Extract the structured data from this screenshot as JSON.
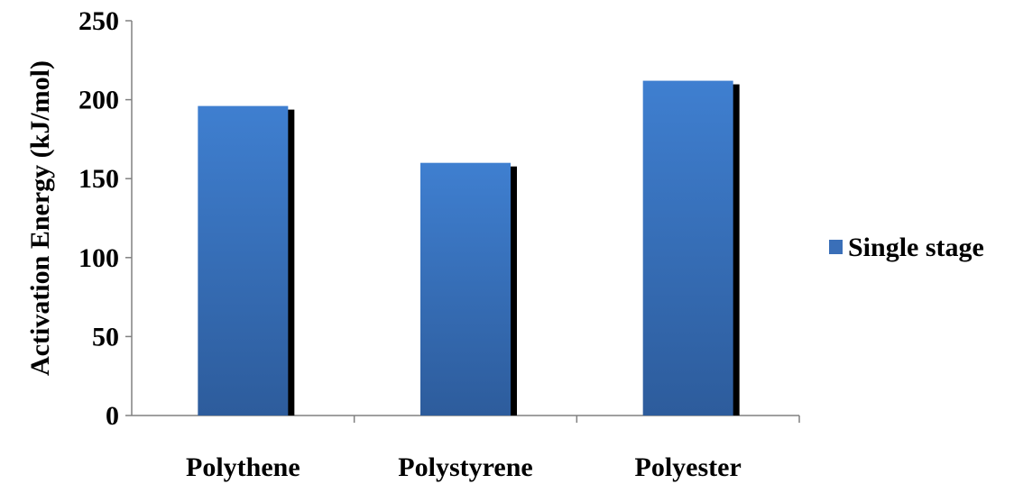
{
  "chart_data": {
    "type": "bar",
    "categories": [
      "Polythene",
      "Polystyrene",
      "Polyester"
    ],
    "series": [
      {
        "name": "Single stage",
        "values": [
          196,
          160,
          212
        ]
      }
    ],
    "title": "",
    "xlabel": "",
    "ylabel": "Activation Energy (kJ/mol)",
    "ylim": [
      0,
      250
    ],
    "yticks": [
      0,
      50,
      100,
      150,
      200,
      250
    ],
    "grid": false,
    "legend_position": "right",
    "colors": {
      "bar_top": "#3f7fd0",
      "bar_bottom": "#2d5c9c",
      "shadow": "#000000",
      "axis": "#808080",
      "legend_swatch": "#3a6fb8"
    }
  }
}
